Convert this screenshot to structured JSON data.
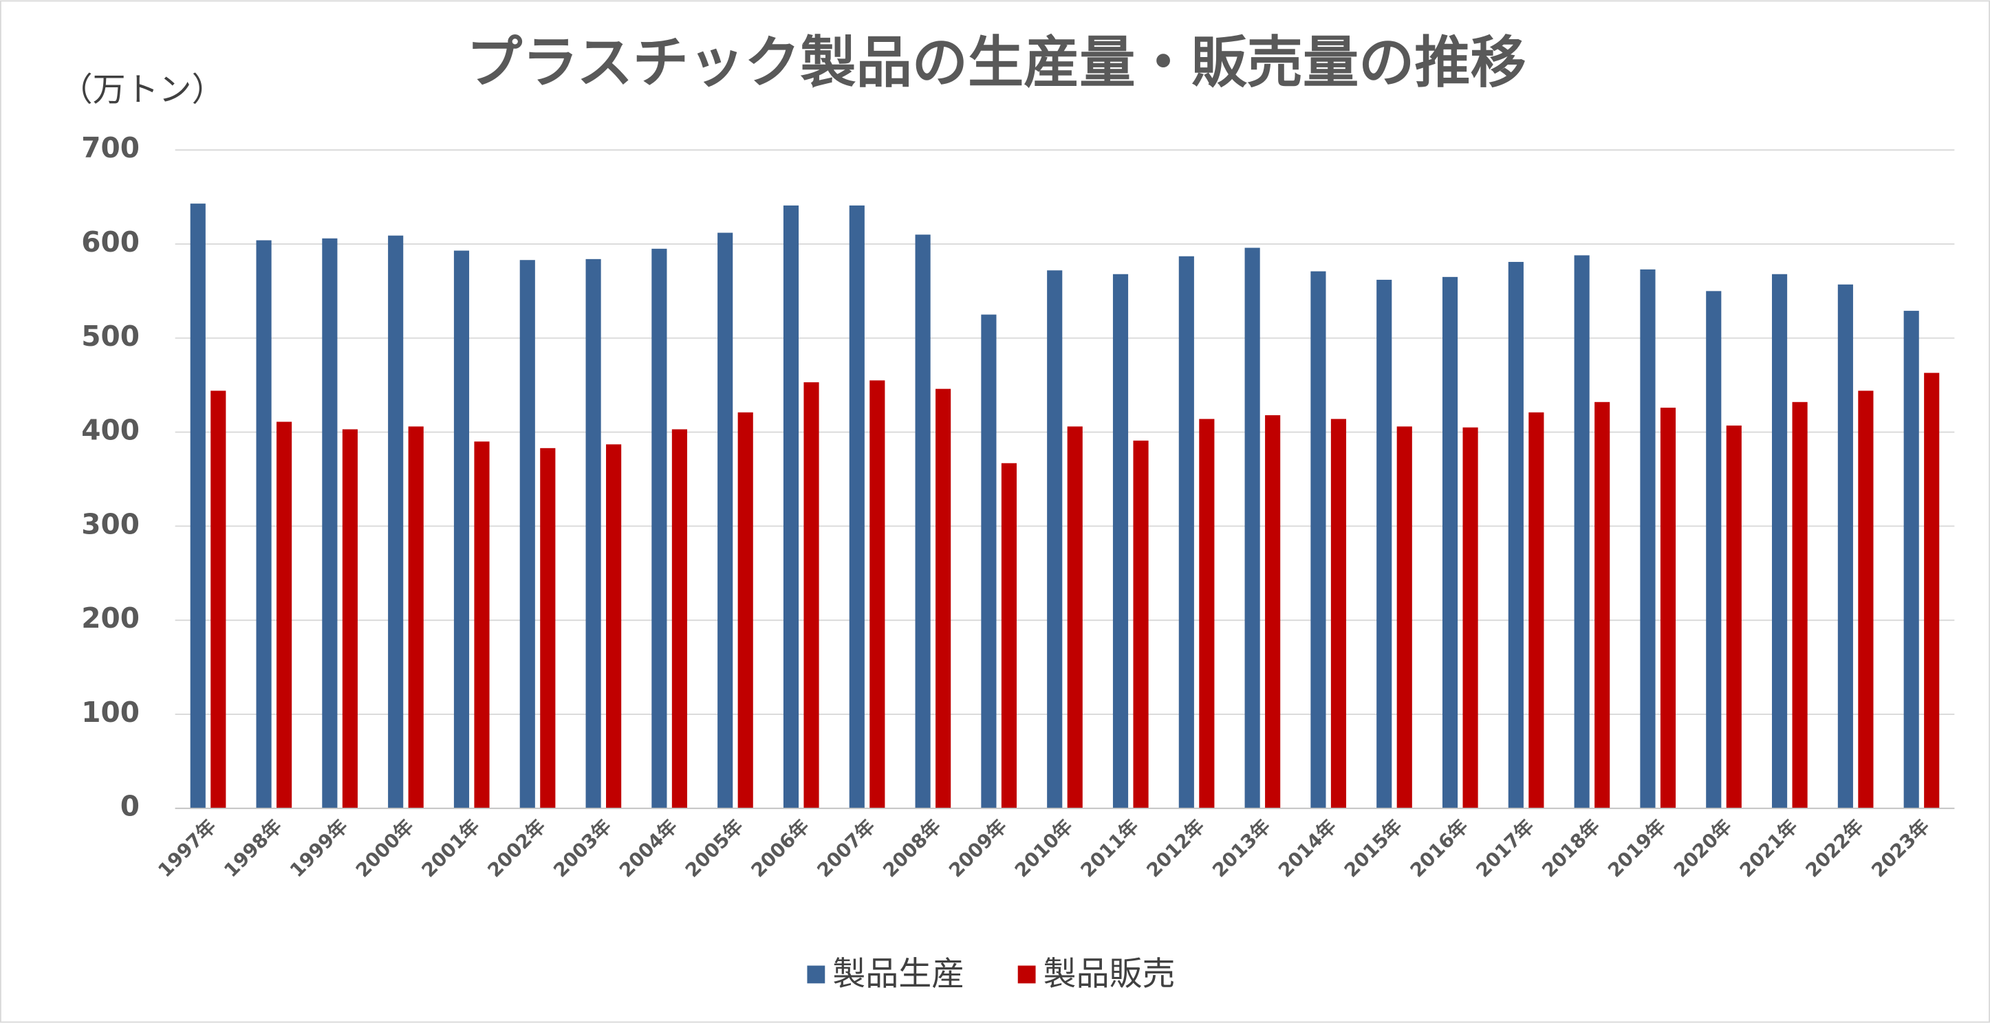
{
  "chart_data": {
    "type": "bar",
    "title": "プラスチック製品の生産量・販売量の推移",
    "y_axis_label": "（万トン）",
    "categories": [
      "1997年",
      "1998年",
      "1999年",
      "2000年",
      "2001年",
      "2002年",
      "2003年",
      "2004年",
      "2005年",
      "2006年",
      "2007年",
      "2008年",
      "2009年",
      "2010年",
      "2011年",
      "2012年",
      "2013年",
      "2014年",
      "2015年",
      "2016年",
      "2017年",
      "2018年",
      "2019年",
      "2020年",
      "2021年",
      "2022年",
      "2023年"
    ],
    "series": [
      {
        "name": "製品生産",
        "color": "#3b6496",
        "values": [
          643,
          604,
          606,
          609,
          593,
          583,
          584,
          595,
          612,
          641,
          641,
          610,
          525,
          572,
          568,
          587,
          596,
          571,
          562,
          565,
          581,
          588,
          573,
          550,
          568,
          557,
          529
        ]
      },
      {
        "name": "製品販売",
        "color": "#c00000",
        "values": [
          444,
          411,
          403,
          406,
          390,
          383,
          387,
          403,
          421,
          453,
          455,
          446,
          367,
          406,
          391,
          414,
          418,
          414,
          406,
          405,
          421,
          432,
          426,
          407,
          432,
          444,
          463
        ]
      }
    ],
    "ylim": [
      0,
      700
    ],
    "yticks": [
      0,
      100,
      200,
      300,
      400,
      500,
      600,
      700
    ],
    "grid": true,
    "legend": "bottom"
  }
}
